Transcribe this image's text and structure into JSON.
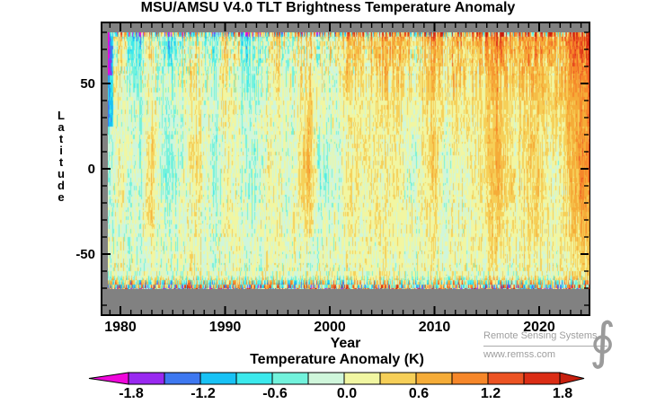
{
  "title": "MSU/AMSU V4.0 TLT Brightness Temperature Anomaly",
  "axes": {
    "x": {
      "label": "Year",
      "major_ticks": [
        1980,
        1990,
        2000,
        2010,
        2020
      ],
      "minor_step": 1,
      "range": [
        1978.2,
        2025.0
      ]
    },
    "y": {
      "label": "Latitude",
      "major_ticks": [
        50,
        0,
        -50
      ],
      "minor_step": 10,
      "range": [
        -86,
        85.5
      ],
      "data_range": [
        -70.5,
        80
      ]
    }
  },
  "colorbar": {
    "title": "Temperature Anomaly (K)",
    "tick_labels": [
      "-1.8",
      "-1.2",
      "-0.6",
      "0.0",
      "0.6",
      "1.2",
      "1.8"
    ],
    "tick_values": [
      -1.8,
      -1.2,
      -0.6,
      0.0,
      0.6,
      1.2,
      1.8
    ],
    "value_min": -2.1,
    "value_max": 2.1,
    "segment_step": 0.3,
    "colors": [
      "#EF07DB",
      "#9929F0",
      "#3E78F0",
      "#18C2F5",
      "#3BE9EC",
      "#72F2DC",
      "#CFF6DB",
      "#F1F6A2",
      "#F6CF58",
      "#F5AC38",
      "#F6872A",
      "#EC5323",
      "#DB2D15",
      "#C71F0E"
    ]
  },
  "frame": {
    "plot_bg": "#818181",
    "frame_color": "#000000",
    "page_bg": "#FFFFFF"
  },
  "watermark": {
    "line1": "Remote Sensing Systems",
    "line2": "www.remss.com",
    "logo_glyph": "∮"
  },
  "chart_data": {
    "type": "heatmap",
    "title": "MSU/AMSU V4.0 TLT Brightness Temperature Anomaly",
    "xlabel": "Year",
    "ylabel": "Latitude",
    "units": "K",
    "legend_title": "Temperature Anomaly (K)",
    "x_years": [
      1979,
      1980,
      1981,
      1982,
      1983,
      1984,
      1985,
      1986,
      1987,
      1988,
      1989,
      1990,
      1991,
      1992,
      1993,
      1994,
      1995,
      1996,
      1997,
      1998,
      1999,
      2000,
      2001,
      2002,
      2003,
      2004,
      2005,
      2006,
      2007,
      2008,
      2009,
      2010,
      2011,
      2012,
      2013,
      2014,
      2015,
      2016,
      2017,
      2018,
      2019,
      2020,
      2021,
      2022,
      2023,
      2024
    ],
    "lat_centers": [
      75,
      65,
      55,
      45,
      35,
      25,
      15,
      5,
      -5,
      -15,
      -25,
      -35,
      -45,
      -55,
      -65
    ],
    "series": [
      {
        "lat": 75,
        "values": [
          -0.3,
          0.4,
          -0.6,
          -0.4,
          0.3,
          -0.5,
          -0.7,
          -0.2,
          0.2,
          -0.1,
          -0.4,
          0.3,
          0.1,
          -0.5,
          -0.3,
          -0.2,
          0.4,
          -0.4,
          0.1,
          0.4,
          -0.1,
          0.1,
          0.3,
          0.4,
          0.4,
          0.3,
          0.6,
          0.5,
          0.7,
          0.3,
          0.4,
          0.8,
          0.5,
          0.7,
          0.4,
          0.6,
          0.7,
          1.1,
          0.8,
          0.6,
          0.8,
          1.0,
          0.7,
          0.8,
          1.1,
          1.4
        ]
      },
      {
        "lat": 65,
        "values": [
          -0.2,
          0.3,
          -0.5,
          -0.3,
          0.3,
          -0.4,
          -0.5,
          -0.1,
          0.2,
          0.0,
          -0.3,
          0.3,
          0.1,
          -0.4,
          -0.3,
          -0.1,
          0.3,
          -0.3,
          0.1,
          0.4,
          -0.1,
          0.0,
          0.2,
          0.3,
          0.3,
          0.3,
          0.5,
          0.4,
          0.5,
          0.2,
          0.3,
          0.6,
          0.4,
          0.5,
          0.3,
          0.4,
          0.6,
          0.9,
          0.6,
          0.5,
          0.7,
          0.8,
          0.5,
          0.6,
          0.9,
          1.2
        ]
      },
      {
        "lat": 55,
        "values": [
          -0.2,
          0.2,
          -0.3,
          -0.2,
          0.2,
          -0.3,
          -0.3,
          -0.1,
          0.2,
          0.1,
          -0.2,
          0.2,
          0.1,
          -0.3,
          -0.2,
          0.0,
          0.2,
          -0.2,
          0.1,
          0.4,
          0.0,
          0.0,
          0.2,
          0.3,
          0.3,
          0.2,
          0.4,
          0.3,
          0.4,
          0.1,
          0.2,
          0.5,
          0.3,
          0.4,
          0.3,
          0.3,
          0.5,
          0.7,
          0.5,
          0.4,
          0.5,
          0.7,
          0.4,
          0.5,
          0.8,
          1.0
        ]
      },
      {
        "lat": 45,
        "values": [
          -0.2,
          0.1,
          -0.2,
          -0.2,
          0.2,
          -0.2,
          -0.2,
          0.0,
          0.2,
          0.1,
          -0.2,
          0.1,
          0.1,
          -0.3,
          -0.2,
          0.0,
          0.1,
          -0.1,
          0.1,
          0.4,
          0.0,
          0.0,
          0.1,
          0.2,
          0.2,
          0.2,
          0.3,
          0.3,
          0.3,
          0.1,
          0.2,
          0.4,
          0.2,
          0.4,
          0.2,
          0.3,
          0.4,
          0.6,
          0.4,
          0.4,
          0.4,
          0.6,
          0.4,
          0.5,
          0.7,
          0.9
        ]
      },
      {
        "lat": 35,
        "values": [
          -0.2,
          0.1,
          -0.1,
          -0.2,
          0.2,
          -0.2,
          -0.2,
          0.0,
          0.2,
          0.1,
          -0.2,
          0.1,
          0.1,
          -0.2,
          -0.2,
          0.0,
          0.1,
          -0.1,
          0.1,
          0.4,
          0.0,
          -0.1,
          0.1,
          0.2,
          0.2,
          0.1,
          0.3,
          0.2,
          0.3,
          0.0,
          0.2,
          0.4,
          0.2,
          0.3,
          0.2,
          0.3,
          0.4,
          0.6,
          0.4,
          0.3,
          0.4,
          0.5,
          0.3,
          0.4,
          0.6,
          0.9
        ]
      },
      {
        "lat": 25,
        "values": [
          -0.2,
          0.0,
          -0.1,
          -0.2,
          0.3,
          -0.2,
          -0.2,
          -0.1,
          0.2,
          0.1,
          -0.2,
          0.1,
          0.0,
          -0.2,
          -0.1,
          0.0,
          0.1,
          -0.1,
          0.1,
          0.5,
          -0.1,
          -0.1,
          0.0,
          0.2,
          0.2,
          0.1,
          0.2,
          0.2,
          0.2,
          0.0,
          0.2,
          0.4,
          0.1,
          0.2,
          0.2,
          0.2,
          0.4,
          0.6,
          0.3,
          0.3,
          0.4,
          0.4,
          0.2,
          0.3,
          0.6,
          0.8
        ]
      },
      {
        "lat": 15,
        "values": [
          -0.2,
          0.1,
          -0.1,
          -0.2,
          0.4,
          -0.3,
          -0.2,
          -0.1,
          0.3,
          0.1,
          -0.3,
          0.0,
          0.1,
          -0.3,
          -0.2,
          0.0,
          0.1,
          -0.1,
          0.2,
          0.6,
          -0.2,
          -0.2,
          0.0,
          0.2,
          0.2,
          0.1,
          0.2,
          0.1,
          0.2,
          -0.1,
          0.2,
          0.5,
          0.0,
          0.2,
          0.1,
          0.2,
          0.4,
          0.7,
          0.3,
          0.2,
          0.4,
          0.4,
          0.1,
          0.2,
          0.6,
          0.9
        ]
      },
      {
        "lat": 5,
        "values": [
          -0.2,
          0.1,
          -0.1,
          -0.2,
          0.4,
          -0.3,
          -0.3,
          -0.1,
          0.3,
          0.1,
          -0.3,
          0.1,
          0.1,
          -0.3,
          -0.2,
          0.0,
          0.1,
          -0.1,
          0.2,
          0.7,
          -0.3,
          -0.2,
          0.0,
          0.2,
          0.2,
          0.1,
          0.2,
          0.1,
          0.2,
          -0.2,
          0.2,
          0.5,
          -0.1,
          0.1,
          0.1,
          0.2,
          0.4,
          0.7,
          0.3,
          0.2,
          0.4,
          0.4,
          0.1,
          0.1,
          0.5,
          1.0
        ]
      },
      {
        "lat": -5,
        "values": [
          -0.2,
          0.1,
          -0.1,
          -0.2,
          0.4,
          -0.3,
          -0.3,
          -0.1,
          0.3,
          0.1,
          -0.3,
          0.1,
          0.1,
          -0.3,
          -0.2,
          0.0,
          0.1,
          -0.1,
          0.2,
          0.7,
          -0.3,
          -0.2,
          0.0,
          0.2,
          0.2,
          0.1,
          0.2,
          0.1,
          0.2,
          -0.2,
          0.2,
          0.5,
          -0.1,
          0.1,
          0.1,
          0.2,
          0.4,
          0.7,
          0.3,
          0.2,
          0.4,
          0.4,
          0.1,
          0.1,
          0.5,
          0.9
        ]
      },
      {
        "lat": -15,
        "values": [
          -0.2,
          0.1,
          -0.1,
          -0.2,
          0.3,
          -0.2,
          -0.2,
          -0.1,
          0.2,
          0.1,
          -0.3,
          0.0,
          0.1,
          -0.2,
          -0.2,
          0.0,
          0.1,
          -0.1,
          0.1,
          0.6,
          -0.2,
          -0.2,
          0.0,
          0.2,
          0.2,
          0.1,
          0.2,
          0.1,
          0.2,
          -0.1,
          0.2,
          0.4,
          0.0,
          0.1,
          0.1,
          0.2,
          0.3,
          0.6,
          0.3,
          0.2,
          0.3,
          0.3,
          0.1,
          0.1,
          0.5,
          0.8
        ]
      },
      {
        "lat": -25,
        "values": [
          -0.1,
          0.1,
          -0.1,
          -0.1,
          0.3,
          -0.2,
          -0.2,
          0.0,
          0.2,
          0.1,
          -0.2,
          0.0,
          0.0,
          -0.2,
          -0.1,
          0.0,
          0.1,
          -0.1,
          0.1,
          0.4,
          -0.1,
          -0.1,
          0.0,
          0.1,
          0.2,
          0.1,
          0.2,
          0.1,
          0.2,
          0.0,
          0.2,
          0.3,
          0.0,
          0.1,
          0.1,
          0.2,
          0.3,
          0.5,
          0.2,
          0.2,
          0.3,
          0.3,
          0.1,
          0.1,
          0.4,
          0.7
        ]
      },
      {
        "lat": -35,
        "values": [
          -0.1,
          0.0,
          -0.1,
          -0.1,
          0.2,
          -0.1,
          -0.2,
          0.0,
          0.1,
          0.1,
          -0.1,
          0.0,
          0.0,
          -0.2,
          -0.1,
          0.0,
          0.1,
          0.0,
          0.1,
          0.3,
          -0.1,
          -0.1,
          0.0,
          0.1,
          0.1,
          0.1,
          0.2,
          0.1,
          0.1,
          0.0,
          0.1,
          0.3,
          0.0,
          0.1,
          0.1,
          0.2,
          0.2,
          0.4,
          0.2,
          0.2,
          0.2,
          0.3,
          0.1,
          0.1,
          0.4,
          0.6
        ]
      },
      {
        "lat": -45,
        "values": [
          -0.1,
          0.0,
          -0.1,
          -0.1,
          0.1,
          -0.1,
          -0.1,
          0.0,
          0.1,
          0.0,
          -0.1,
          0.0,
          0.0,
          -0.1,
          -0.1,
          0.0,
          0.1,
          0.0,
          0.0,
          0.2,
          -0.1,
          0.0,
          0.0,
          0.1,
          0.1,
          0.0,
          0.1,
          0.1,
          0.1,
          0.0,
          0.1,
          0.2,
          0.0,
          0.1,
          0.1,
          0.1,
          0.2,
          0.3,
          0.2,
          0.1,
          0.2,
          0.2,
          0.1,
          0.1,
          0.3,
          0.5
        ]
      },
      {
        "lat": -55,
        "values": [
          -0.1,
          0.0,
          0.0,
          -0.1,
          0.1,
          -0.1,
          -0.1,
          0.0,
          0.1,
          0.0,
          -0.1,
          0.0,
          0.0,
          -0.1,
          0.0,
          0.0,
          0.0,
          0.0,
          0.0,
          0.1,
          0.0,
          0.0,
          0.0,
          0.1,
          0.1,
          0.0,
          0.1,
          0.0,
          0.1,
          0.0,
          0.1,
          0.1,
          0.0,
          0.1,
          0.0,
          0.1,
          0.1,
          0.2,
          0.1,
          0.1,
          0.1,
          0.2,
          0.1,
          0.1,
          0.2,
          0.4
        ]
      },
      {
        "lat": -65,
        "values": [
          -0.1,
          0.0,
          0.0,
          -0.1,
          0.0,
          -0.1,
          -0.1,
          0.0,
          0.1,
          0.0,
          -0.1,
          0.0,
          0.0,
          -0.1,
          0.0,
          0.0,
          0.0,
          0.0,
          0.0,
          0.1,
          0.0,
          0.0,
          0.0,
          0.0,
          0.1,
          0.0,
          0.1,
          0.0,
          0.1,
          0.0,
          0.1,
          0.1,
          0.0,
          0.0,
          0.0,
          0.1,
          0.1,
          0.2,
          0.1,
          0.1,
          0.1,
          0.1,
          0.0,
          0.1,
          0.2,
          0.3
        ]
      }
    ],
    "layout_hints": {
      "legend_position": "bottom",
      "grid": false,
      "note": "monthly-by-2.5deg Hovmoller; values are yearly 10-deg-band means in K"
    }
  }
}
